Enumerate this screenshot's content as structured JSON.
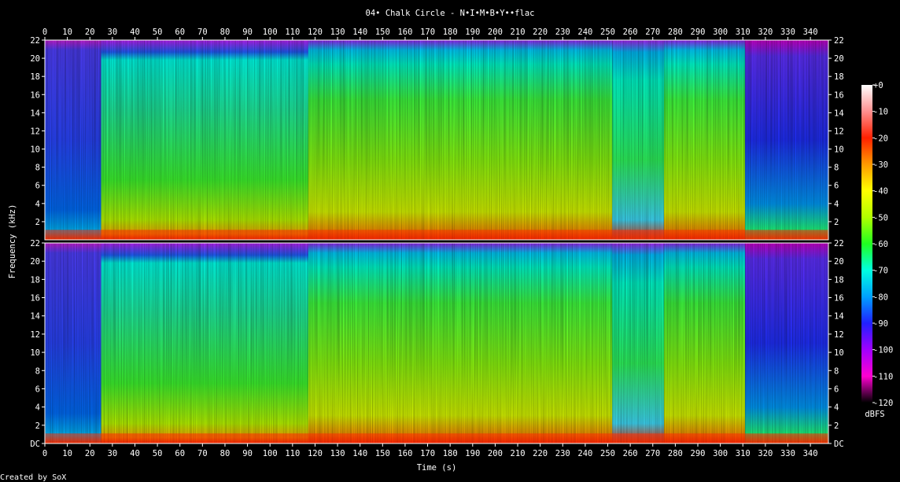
{
  "chart_data": {
    "type": "heatmap",
    "title": "04• Chalk Circle - N•I•M•B•Y••flac",
    "xlabel": "Time (s)",
    "ylabel": "Frequency (kHz)",
    "xlim": [
      0,
      348
    ],
    "ylim": [
      0,
      22
    ],
    "x_ticks": [
      0,
      10,
      20,
      30,
      40,
      50,
      60,
      70,
      80,
      90,
      100,
      110,
      120,
      130,
      140,
      150,
      160,
      170,
      180,
      190,
      200,
      210,
      220,
      230,
      240,
      250,
      260,
      270,
      280,
      290,
      300,
      310,
      320,
      330,
      340
    ],
    "y_ticks": [
      {
        "value": 0,
        "label": "DC"
      },
      {
        "value": 2,
        "label": "2"
      },
      {
        "value": 4,
        "label": "4"
      },
      {
        "value": 6,
        "label": "6"
      },
      {
        "value": 8,
        "label": "8"
      },
      {
        "value": 10,
        "label": "10"
      },
      {
        "value": 12,
        "label": "12"
      },
      {
        "value": 14,
        "label": "14"
      },
      {
        "value": 16,
        "label": "16"
      },
      {
        "value": 18,
        "label": "18"
      },
      {
        "value": 20,
        "label": "20"
      },
      {
        "value": 22,
        "label": "22"
      }
    ],
    "channels": 2,
    "colorbar": {
      "unit": "dBFS",
      "ticks": [
        0,
        -10,
        -20,
        -30,
        -40,
        -50,
        -60,
        -70,
        -80,
        -90,
        -100,
        -110,
        -120
      ],
      "labels": [
        "+0",
        "-10",
        "-20",
        "-30",
        "-40",
        "-50",
        "-60",
        "-70",
        "-80",
        "-90",
        "-100",
        "-110",
        "-120"
      ],
      "colors": [
        {
          "db": 0,
          "color": "#ffffff"
        },
        {
          "db": -10,
          "color": "#ff9090"
        },
        {
          "db": -20,
          "color": "#ff2000"
        },
        {
          "db": -30,
          "color": "#ff9a00"
        },
        {
          "db": -40,
          "color": "#ffff00"
        },
        {
          "db": -50,
          "color": "#b0ff00"
        },
        {
          "db": -60,
          "color": "#20ff20"
        },
        {
          "db": -70,
          "color": "#00ffe0"
        },
        {
          "db": -80,
          "color": "#00a0ff"
        },
        {
          "db": -90,
          "color": "#2020ff"
        },
        {
          "db": -100,
          "color": "#a000ff"
        },
        {
          "db": -110,
          "color": "#ff00d0"
        },
        {
          "db": -120,
          "color": "#000000"
        }
      ]
    },
    "segments": [
      {
        "from": 0,
        "to": 25,
        "level": "quiet"
      },
      {
        "from": 25,
        "to": 117,
        "level": "loud"
      },
      {
        "from": 117,
        "to": 252,
        "level": "louder"
      },
      {
        "from": 252,
        "to": 275,
        "level": "loud-sparse"
      },
      {
        "from": 275,
        "to": 311,
        "level": "louder"
      },
      {
        "from": 311,
        "to": 348,
        "level": "fade"
      }
    ],
    "credit": "Created by SoX"
  }
}
